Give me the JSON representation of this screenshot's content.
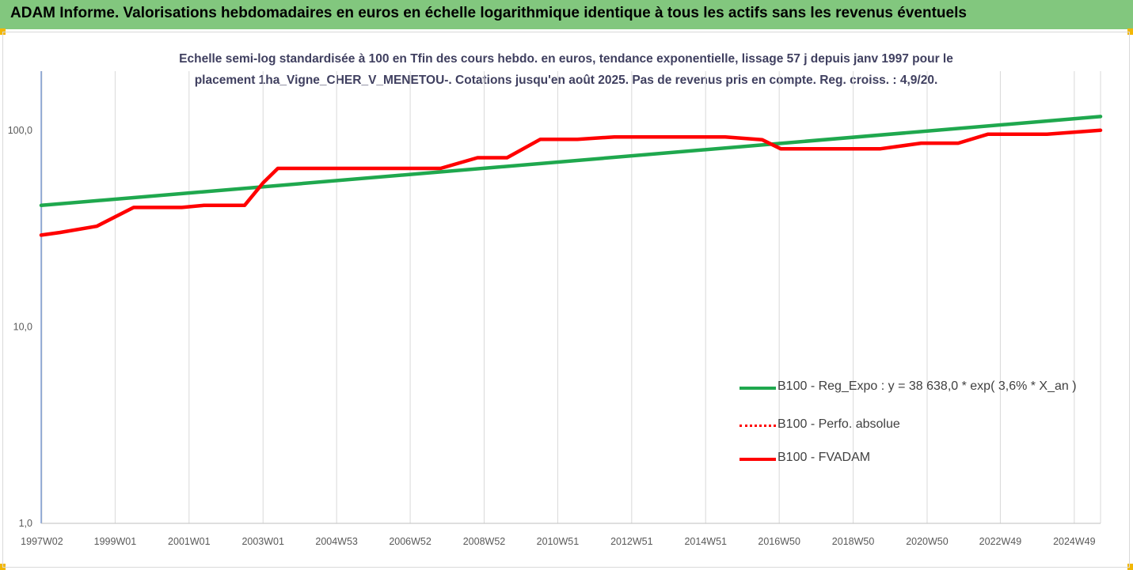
{
  "header": {
    "title": "ADAM Informe. Valorisations hebdomadaires en euros en échelle logarithmique identique à tous les actifs sans les revenus éventuels"
  },
  "colors": {
    "title_bar": "#82c77e",
    "corner_accent": "#f2b705",
    "reg_expo": "#1fa84e",
    "fvadam": "#ff0000",
    "perfo": "#ff0000"
  },
  "chart_data": {
    "type": "line",
    "subtitle_line1": "Echelle semi-log standardisée à 100 en Tfin des cours hebdo. en euros, tendance exponentielle, lissage 57 j depuis janv 1997 pour le",
    "subtitle_line2": "placement 1ha_Vigne_CHER_V_MENETOU-. Cotations jusqu'en août 2025. Pas de revenus pris en compte. Reg. croiss. : 4,9/20.",
    "y_scale": "log",
    "ylim": [
      1,
      200
    ],
    "y_ticks": [
      {
        "value": 1,
        "label": "1,0"
      },
      {
        "value": 10,
        "label": "10,0"
      },
      {
        "value": 100,
        "label": "100,0"
      }
    ],
    "x_range": [
      1997.0,
      2025.65
    ],
    "x_ticks": [
      {
        "value": 1997.02,
        "label": "1997W02"
      },
      {
        "value": 1999.0,
        "label": "1999W01"
      },
      {
        "value": 2001.0,
        "label": "2001W01"
      },
      {
        "value": 2003.0,
        "label": "2003W01"
      },
      {
        "value": 2004.99,
        "label": "2004W53"
      },
      {
        "value": 2006.98,
        "label": "2006W52"
      },
      {
        "value": 2008.98,
        "label": "2008W52"
      },
      {
        "value": 2010.97,
        "label": "2010W51"
      },
      {
        "value": 2012.97,
        "label": "2012W51"
      },
      {
        "value": 2014.97,
        "label": "2014W51"
      },
      {
        "value": 2016.96,
        "label": "2016W50"
      },
      {
        "value": 2018.96,
        "label": "2018W50"
      },
      {
        "value": 2020.96,
        "label": "2020W50"
      },
      {
        "value": 2022.94,
        "label": "2022W49"
      },
      {
        "value": 2024.94,
        "label": "2024W49"
      }
    ],
    "grid": "vertical",
    "legend_position": "right",
    "series": [
      {
        "name": "B100 - Reg_Expo : y = 38 638,0 * exp( 3,6% *  X_an )",
        "style": "solid",
        "color": "#1fa84e",
        "points": [
          [
            1997.0,
            41.5
          ],
          [
            2025.65,
            117.5
          ]
        ]
      },
      {
        "name": "B100 - Perfo. absolue",
        "style": "dotted",
        "color": "#ff0000",
        "points": []
      },
      {
        "name": "B100 - FVADAM",
        "style": "solid",
        "color": "#ff0000",
        "points": [
          [
            1997.0,
            29.3
          ],
          [
            1997.5,
            30.2
          ],
          [
            1998.5,
            32.5
          ],
          [
            1999.5,
            40.5
          ],
          [
            2000.8,
            40.5
          ],
          [
            2001.4,
            41.5
          ],
          [
            2002.5,
            41.5
          ],
          [
            2003.0,
            54.0
          ],
          [
            2003.4,
            64.0
          ],
          [
            2007.8,
            64.0
          ],
          [
            2008.8,
            72.5
          ],
          [
            2009.6,
            72.5
          ],
          [
            2010.5,
            90.0
          ],
          [
            2011.5,
            90.0
          ],
          [
            2012.5,
            92.5
          ],
          [
            2015.5,
            92.5
          ],
          [
            2016.5,
            89.5
          ],
          [
            2017.0,
            80.5
          ],
          [
            2019.7,
            80.5
          ],
          [
            2020.8,
            86.0
          ],
          [
            2021.8,
            86.0
          ],
          [
            2022.6,
            95.5
          ],
          [
            2024.2,
            95.5
          ],
          [
            2025.65,
            100.0
          ]
        ]
      }
    ]
  }
}
